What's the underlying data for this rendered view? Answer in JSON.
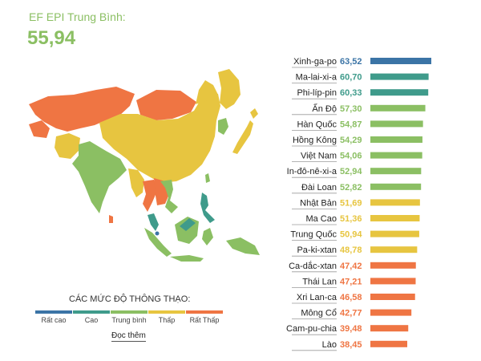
{
  "header": {
    "title": "EF EPI Trung Bình:",
    "average": "55,94"
  },
  "legend": {
    "title": "CÁC MỨC ĐỘ THÔNG THẠO:",
    "levels": [
      {
        "label": "Rất cao",
        "color": "#3b74a6"
      },
      {
        "label": "Cao",
        "color": "#3f9b8b"
      },
      {
        "label": "Trung bình",
        "color": "#8bbf63"
      },
      {
        "label": "Thấp",
        "color": "#e7c540"
      },
      {
        "label": "Rất Thấp",
        "color": "#ef7543"
      }
    ]
  },
  "read_more": "Đọc thêm",
  "map_colors": {
    "very_high": "#3b74a6",
    "high": "#3f9b8b",
    "moderate": "#8bbf63",
    "low": "#e7c540",
    "very_low": "#ef7543"
  },
  "chart_data": {
    "type": "bar",
    "orientation": "horizontal",
    "categories": [
      "Xinh-ga-po",
      "Ma-lai-xi-a",
      "Phi-líp-pin",
      "Ấn Độ",
      "Hàn Quốc",
      "Hồng Kông",
      "Việt Nam",
      "In-đô-nê-xi-a",
      "Đài Loan",
      "Nhật Bản",
      "Ma Cao",
      "Trung Quốc",
      "Pa-ki-xtan",
      "Ca-dắc-xtan",
      "Thái Lan",
      "Xri Lan-ca",
      "Mông Cổ",
      "Cam-pu-chia",
      "Lào"
    ],
    "values": [
      63.52,
      60.7,
      60.33,
      57.3,
      54.87,
      54.29,
      54.06,
      52.94,
      52.82,
      51.69,
      51.36,
      50.94,
      48.78,
      47.42,
      47.21,
      46.58,
      42.77,
      39.48,
      38.45
    ],
    "value_labels": [
      "63,52",
      "60,70",
      "60,33",
      "57,30",
      "54,87",
      "54,29",
      "54,06",
      "52,94",
      "52,82",
      "51,69",
      "51,36",
      "50,94",
      "48,78",
      "47,42",
      "47,21",
      "46,58",
      "42,77",
      "39,48",
      "38,45"
    ],
    "colors": [
      "#3b74a6",
      "#3f9b8b",
      "#3f9b8b",
      "#8bbf63",
      "#8bbf63",
      "#8bbf63",
      "#8bbf63",
      "#8bbf63",
      "#8bbf63",
      "#e7c540",
      "#e7c540",
      "#e7c540",
      "#e7c540",
      "#ef7543",
      "#ef7543",
      "#ef7543",
      "#ef7543",
      "#ef7543",
      "#ef7543"
    ],
    "title": "",
    "xlabel": "",
    "ylabel": "",
    "grid": false
  }
}
